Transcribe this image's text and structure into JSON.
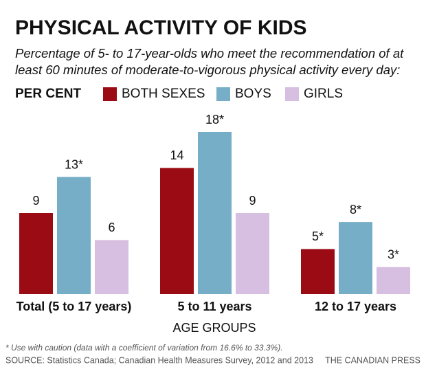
{
  "chart_data": {
    "type": "bar",
    "title": "PHYSICAL ACTIVITY OF KIDS",
    "subtitle": "Percentage of 5- to 17-year-olds who meet the recommendation of at least 60 minutes of moderate-to-vigorous physical activity every day:",
    "y_label": "PER CENT",
    "x_label": "AGE GROUPS",
    "categories": [
      "Total (5 to 17 years)",
      "5 to 11 years",
      "12 to 17 years"
    ],
    "series": [
      {
        "name": "BOTH SEXES",
        "color": "#9b0b13",
        "values": [
          9,
          14,
          5
        ],
        "value_labels": [
          "9",
          "14",
          "5*"
        ]
      },
      {
        "name": "BOYS",
        "color": "#76aec8",
        "values": [
          13,
          18,
          8
        ],
        "value_labels": [
          "13*",
          "18*",
          "8*"
        ]
      },
      {
        "name": "GIRLS",
        "color": "#d6bfe0",
        "values": [
          6,
          9,
          3
        ],
        "value_labels": [
          "6",
          "9",
          "3*"
        ]
      }
    ],
    "footnote": "* Use with caution (data with a coefficient of variation from 16.6% to 33.3%).",
    "source": "SOURCE: Statistics Canada; Canadian Health Measures Survey, 2012 and 2013",
    "credit": "THE CANADIAN PRESS"
  }
}
